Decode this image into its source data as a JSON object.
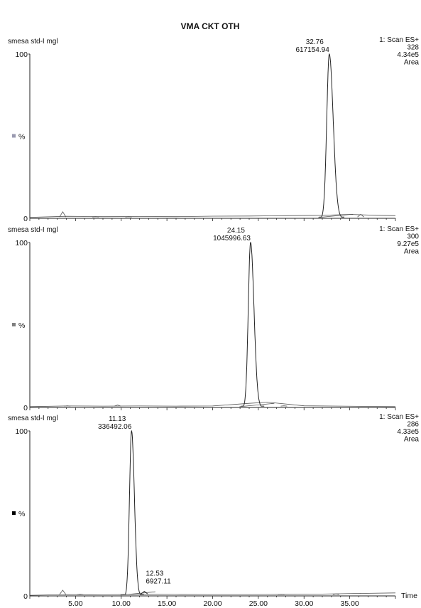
{
  "title": "VMA CKT OTH",
  "x_axis_label": "Time",
  "chart_data": [
    {
      "type": "line",
      "sample": "smesa std-I mgl",
      "scan": "1: Scan ES+",
      "mass": "328",
      "intensity": "4.34e5",
      "mode": "Area",
      "y_unit": "%",
      "y_ticks": [
        "100",
        "0"
      ],
      "ylim": [
        0,
        100
      ],
      "xlim": [
        0,
        40
      ],
      "peak": {
        "rt": "32.76",
        "area": "617154.94",
        "x": 32.76,
        "width": 0.55,
        "tail": 1.6
      },
      "minor_peaks": [
        {
          "x": 3.6,
          "y": 4
        },
        {
          "x": 7.2,
          "y": 1
        },
        {
          "x": 10.8,
          "y": 1
        },
        {
          "x": 36.2,
          "y": 2.5
        }
      ],
      "series": [
        {
          "values": [
            [
              0,
              0.6
            ],
            [
              4,
              1.2
            ],
            [
              8,
              1.0
            ],
            [
              12,
              1.1
            ],
            [
              16,
              1.0
            ],
            [
              20,
              1.3
            ],
            [
              24,
              1.4
            ],
            [
              28,
              1.6
            ],
            [
              32,
              1.8
            ],
            [
              35,
              2.4
            ],
            [
              38,
              1.8
            ],
            [
              40,
              1.6
            ]
          ]
        }
      ]
    },
    {
      "type": "line",
      "sample": "smesa std-I mgl",
      "scan": "1: Scan ES+",
      "mass": "300",
      "intensity": "9.27e5",
      "mode": "Area",
      "y_unit": "%",
      "y_ticks": [
        "100",
        "0"
      ],
      "ylim": [
        0,
        100
      ],
      "xlim": [
        0,
        40
      ],
      "peak": {
        "rt": "24.15",
        "area": "1045996.63",
        "x": 24.15,
        "width": 0.5,
        "tail": 1.4
      },
      "minor_peaks": [
        {
          "x": 4.1,
          "y": 1
        },
        {
          "x": 9.6,
          "y": 1.5
        },
        {
          "x": 27.8,
          "y": 1
        }
      ],
      "series": [
        {
          "values": [
            [
              0,
              0.5
            ],
            [
              4,
              0.9
            ],
            [
              8,
              0.8
            ],
            [
              12,
              0.9
            ],
            [
              16,
              0.8
            ],
            [
              20,
              0.9
            ],
            [
              24,
              2.5
            ],
            [
              26,
              3.2
            ],
            [
              30,
              1.0
            ],
            [
              34,
              0.8
            ],
            [
              38,
              0.6
            ],
            [
              40,
              0.5
            ]
          ]
        }
      ]
    },
    {
      "type": "line",
      "sample": "smesa std-I mgl",
      "scan": "1: Scan ES+",
      "mass": "286",
      "intensity": "4.33e5",
      "mode": "Area",
      "y_unit": "%",
      "y_ticks": [
        "100",
        "0"
      ],
      "ylim": [
        0,
        100
      ],
      "xlim": [
        0,
        40
      ],
      "peak": {
        "rt": "11.13",
        "area": "336492.06",
        "x": 11.13,
        "width": 0.45,
        "tail": 1.1
      },
      "secondary_peak": {
        "rt": "12.53",
        "area": "6927.11",
        "x": 12.53,
        "y": 2.8
      },
      "minor_peaks": [
        {
          "x": 3.6,
          "y": 3.5
        },
        {
          "x": 5.5,
          "y": 1
        },
        {
          "x": 27.5,
          "y": 1
        },
        {
          "x": 33.5,
          "y": 1.2
        }
      ],
      "series": [
        {
          "values": [
            [
              0,
              0.4
            ],
            [
              4,
              0.8
            ],
            [
              8,
              0.7
            ],
            [
              12,
              1.0
            ],
            [
              16,
              0.9
            ],
            [
              20,
              0.8
            ],
            [
              24,
              0.8
            ],
            [
              28,
              1.0
            ],
            [
              32,
              1.1
            ],
            [
              36,
              1.5
            ],
            [
              40,
              1.8
            ]
          ]
        }
      ]
    }
  ],
  "x_ticks": [
    "5.00",
    "10.00",
    "15.00",
    "20.00",
    "25.00",
    "30.00",
    "35.00"
  ],
  "legend_marker_colors": [
    "#9a9ab0",
    "#7f7f7f",
    "#000000"
  ]
}
